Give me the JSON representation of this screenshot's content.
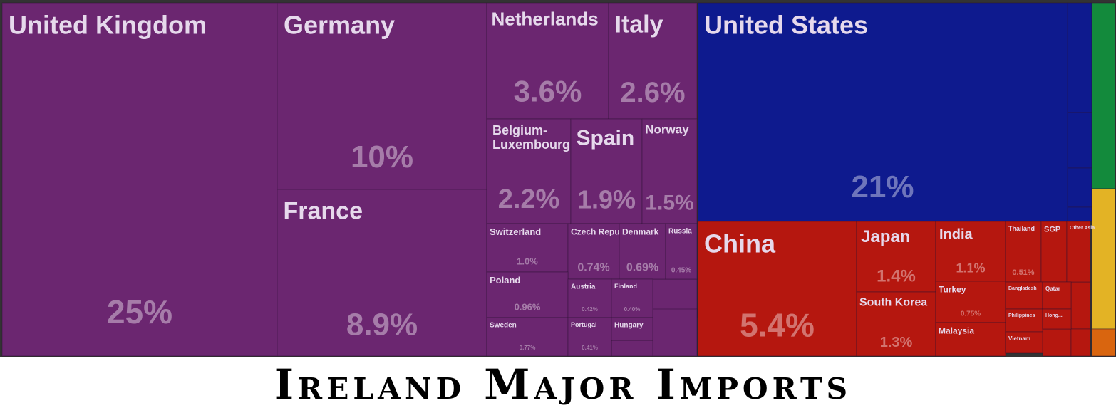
{
  "chart_data": {
    "type": "treemap",
    "title": "Ireland Major Imports",
    "categories": [
      "United Kingdom",
      "Germany",
      "France",
      "Netherlands",
      "Italy",
      "Belgium-Luxembourg",
      "Spain",
      "Norway",
      "Switzerland",
      "Czech Republic",
      "Denmark",
      "Russia",
      "Poland",
      "Sweden",
      "Austria",
      "Finland",
      "Portugal",
      "Hungary",
      "United States",
      "China",
      "Japan",
      "South Korea",
      "India",
      "Turkey",
      "Malaysia",
      "Thailand",
      "SGP",
      "Other Asia",
      "Bangladesh",
      "Qatar",
      "Philippines",
      "Hong...",
      "Vietnam"
    ],
    "values": [
      25,
      10,
      8.9,
      3.6,
      2.6,
      2.2,
      1.9,
      1.5,
      1.0,
      0.74,
      0.69,
      0.45,
      0.96,
      0.77,
      0.42,
      0.4,
      0.41,
      0.35,
      21,
      5.4,
      1.4,
      1.3,
      1.1,
      0.75,
      0.6,
      0.51,
      0.35,
      0.3,
      0.2,
      0.18,
      0.17,
      0.15,
      0.15
    ],
    "value_labels": [
      "25%",
      "10%",
      "8.9%",
      "3.6%",
      "2.6%",
      "2.2%",
      "1.9%",
      "1.5%",
      "1.0%",
      "0.74%",
      "0.69%",
      "0.45%",
      "0.96%",
      "0.77%",
      "0.42%",
      "0.40%",
      "0.41%",
      null,
      "21%",
      "5.4%",
      "1.4%",
      "1.3%",
      "1.1%",
      "0.75%",
      null,
      "0.51%",
      null,
      null,
      null,
      null,
      null,
      null,
      null
    ],
    "colors": [
      "#6b2670",
      "#6b2670",
      "#6b2670",
      "#6b2670",
      "#6b2670",
      "#6b2670",
      "#6b2670",
      "#6b2670",
      "#6b2670",
      "#6b2670",
      "#6b2670",
      "#6b2670",
      "#6b2670",
      "#6b2670",
      "#6b2670",
      "#6b2670",
      "#6b2670",
      "#6b2670",
      "#0e1a8e",
      "#b5170f",
      "#b5170f",
      "#b5170f",
      "#b5170f",
      "#b5170f",
      "#b5170f",
      "#b5170f",
      "#b5170f",
      "#b5170f",
      "#b5170f",
      "#b5170f",
      "#b5170f",
      "#b5170f",
      "#b5170f"
    ]
  }
}
